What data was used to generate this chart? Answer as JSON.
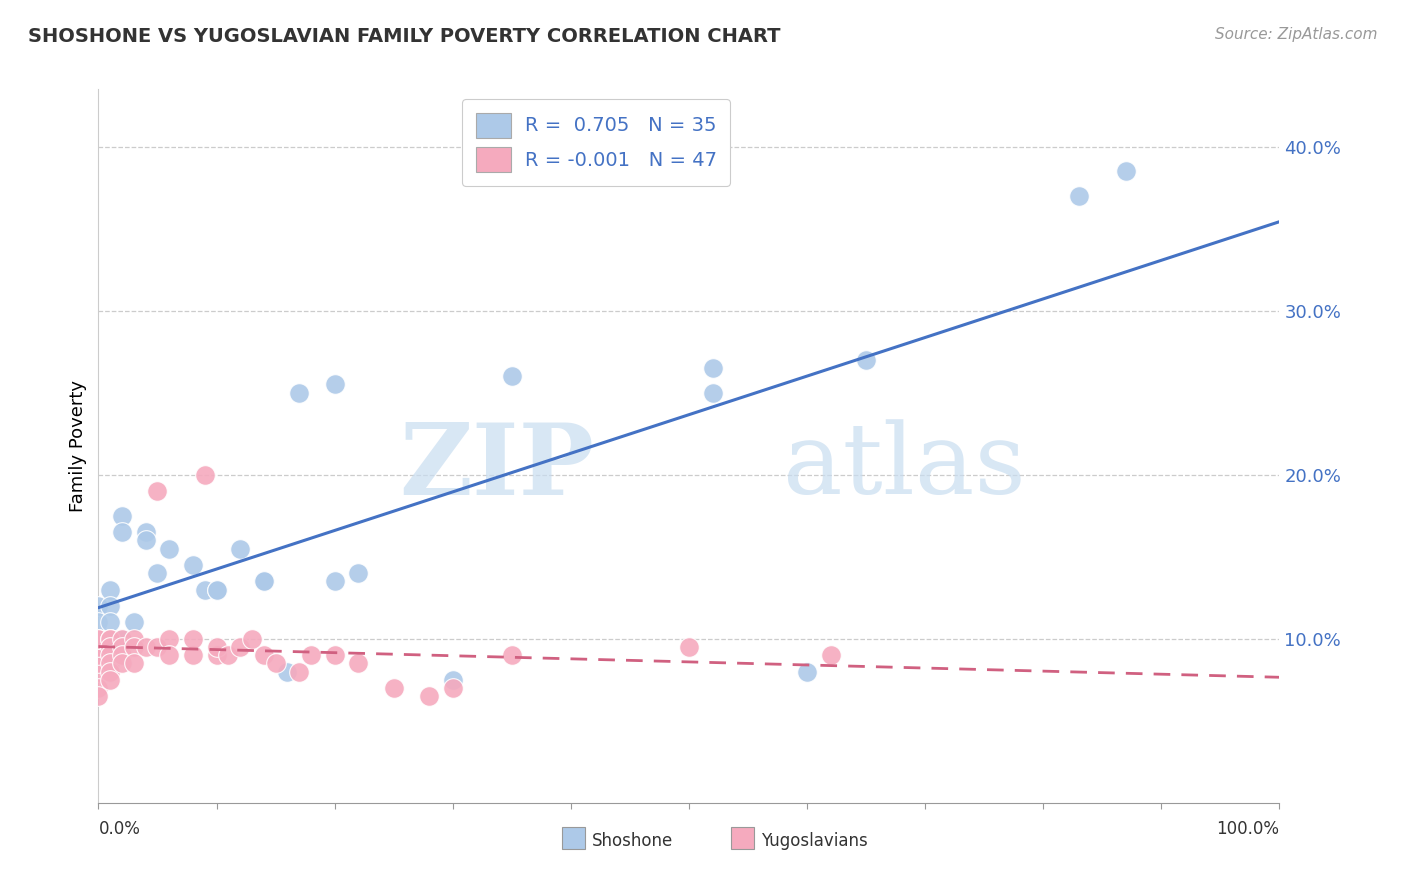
{
  "title": "SHOSHONE VS YUGOSLAVIAN FAMILY POVERTY CORRELATION CHART",
  "source": "Source: ZipAtlas.com",
  "ylabel": "Family Poverty",
  "yticks": [
    0.1,
    0.2,
    0.3,
    0.4
  ],
  "xlim": [
    0.0,
    1.0
  ],
  "ylim": [
    0.0,
    0.435
  ],
  "shoshone_r": 0.705,
  "shoshone_n": 35,
  "yugoslavian_r": -0.001,
  "yugoslavian_n": 47,
  "shoshone_color": "#adc9e8",
  "yugoslavian_color": "#f5aabe",
  "shoshone_edge_color": "#7aaad4",
  "yugoslavian_edge_color": "#e07090",
  "shoshone_line_color": "#4472c4",
  "yugoslavian_line_color": "#d06080",
  "grid_color": "#cccccc",
  "tick_color": "#4472c4",
  "shoshone_x": [
    0.0,
    0.0,
    0.0,
    0.01,
    0.01,
    0.01,
    0.01,
    0.02,
    0.02,
    0.02,
    0.03,
    0.04,
    0.04,
    0.05,
    0.06,
    0.08,
    0.09,
    0.1,
    0.1,
    0.12,
    0.14,
    0.14,
    0.16,
    0.17,
    0.2,
    0.2,
    0.22,
    0.3,
    0.35,
    0.52,
    0.52,
    0.6,
    0.65,
    0.83,
    0.87
  ],
  "shoshone_y": [
    0.12,
    0.11,
    0.1,
    0.13,
    0.12,
    0.11,
    0.1,
    0.175,
    0.165,
    0.1,
    0.11,
    0.165,
    0.16,
    0.14,
    0.155,
    0.145,
    0.13,
    0.13,
    0.13,
    0.155,
    0.135,
    0.135,
    0.08,
    0.25,
    0.135,
    0.255,
    0.14,
    0.075,
    0.26,
    0.25,
    0.265,
    0.08,
    0.27,
    0.37,
    0.385
  ],
  "yugoslavian_x": [
    0.0,
    0.0,
    0.0,
    0.0,
    0.0,
    0.0,
    0.0,
    0.0,
    0.01,
    0.01,
    0.01,
    0.01,
    0.01,
    0.01,
    0.01,
    0.02,
    0.02,
    0.02,
    0.02,
    0.03,
    0.03,
    0.03,
    0.04,
    0.05,
    0.05,
    0.06,
    0.06,
    0.08,
    0.08,
    0.09,
    0.1,
    0.1,
    0.11,
    0.12,
    0.13,
    0.14,
    0.15,
    0.17,
    0.18,
    0.2,
    0.22,
    0.25,
    0.28,
    0.3,
    0.35,
    0.5,
    0.62
  ],
  "yugoslavian_y": [
    0.08,
    0.085,
    0.09,
    0.095,
    0.1,
    0.1,
    0.07,
    0.065,
    0.1,
    0.1,
    0.095,
    0.09,
    0.085,
    0.08,
    0.075,
    0.1,
    0.095,
    0.09,
    0.085,
    0.1,
    0.095,
    0.085,
    0.095,
    0.095,
    0.19,
    0.1,
    0.09,
    0.09,
    0.1,
    0.2,
    0.09,
    0.095,
    0.09,
    0.095,
    0.1,
    0.09,
    0.085,
    0.08,
    0.09,
    0.09,
    0.085,
    0.07,
    0.065,
    0.07,
    0.09,
    0.095,
    0.09
  ]
}
